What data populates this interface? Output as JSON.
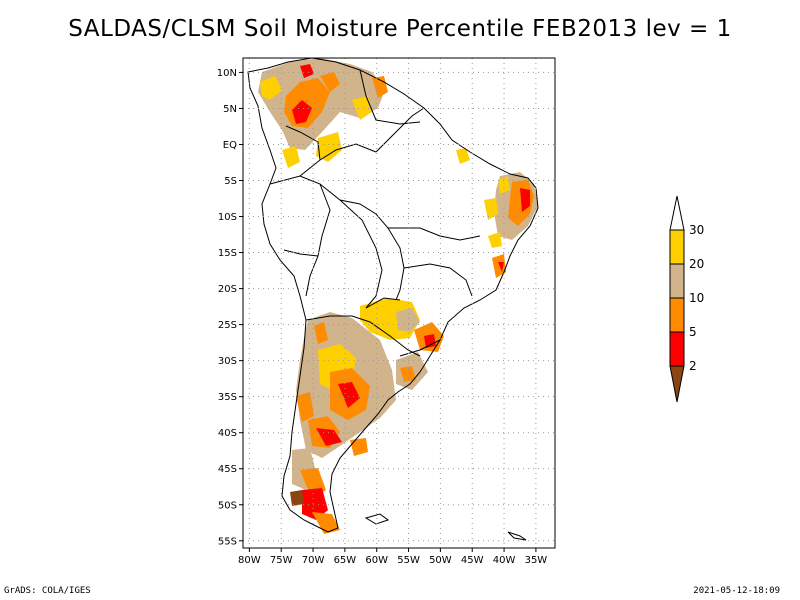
{
  "title": "SALDAS/CLSM Soil Moisture Percentile FEB2013 lev = 1",
  "footer": {
    "left": "GrADS: COLA/IGES",
    "right": "2021-05-12-18:09"
  },
  "map": {
    "lon_range": [
      -81,
      -32
    ],
    "lat_range": [
      -56,
      12
    ],
    "lat_ticks": [
      {
        "value": 10,
        "label": "10N"
      },
      {
        "value": 5,
        "label": "5N"
      },
      {
        "value": 0,
        "label": "EQ"
      },
      {
        "value": -5,
        "label": "5S"
      },
      {
        "value": -10,
        "label": "10S"
      },
      {
        "value": -15,
        "label": "15S"
      },
      {
        "value": -20,
        "label": "20S"
      },
      {
        "value": -25,
        "label": "25S"
      },
      {
        "value": -30,
        "label": "30S"
      },
      {
        "value": -35,
        "label": "35S"
      },
      {
        "value": -40,
        "label": "40S"
      },
      {
        "value": -45,
        "label": "45S"
      },
      {
        "value": -50,
        "label": "50S"
      },
      {
        "value": -55,
        "label": "55S"
      }
    ],
    "lon_ticks": [
      {
        "value": -80,
        "label": "80W"
      },
      {
        "value": -75,
        "label": "75W"
      },
      {
        "value": -70,
        "label": "70W"
      },
      {
        "value": -65,
        "label": "65W"
      },
      {
        "value": -60,
        "label": "60W"
      },
      {
        "value": -55,
        "label": "55W"
      },
      {
        "value": -50,
        "label": "50W"
      },
      {
        "value": -45,
        "label": "45W"
      },
      {
        "value": -40,
        "label": "40W"
      },
      {
        "value": -35,
        "label": "35W"
      }
    ]
  },
  "legend": {
    "levels": [
      {
        "label": "30",
        "color": "#ffd000"
      },
      {
        "label": "20",
        "color": "#d2b48c"
      },
      {
        "label": "10",
        "color": "#ff8c00"
      },
      {
        "label": "5",
        "color": "#ff0000"
      },
      {
        "label": "2",
        "color": "#8b4513"
      }
    ],
    "top_color": "#ffffff",
    "bottom_color": "#8b4513"
  }
}
